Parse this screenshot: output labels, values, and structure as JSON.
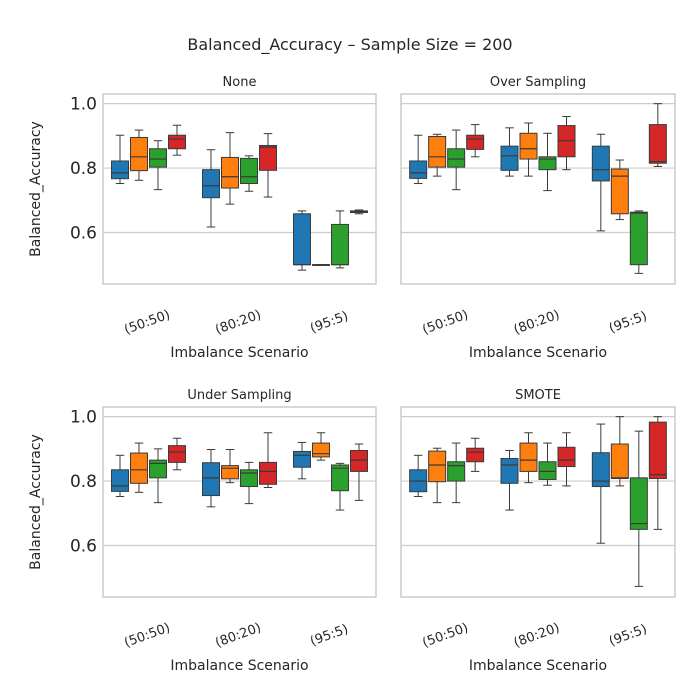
{
  "chart_data": {
    "type": "box",
    "title": "Balanced_Accuracy – Sample Size = 200",
    "xlabel": "Imbalance Scenario",
    "ylabel": "Balanced_Accuracy",
    "ylim": [
      0.44,
      1.03
    ],
    "yticks": [
      0.6,
      0.8,
      1.0
    ],
    "ytick_labels": [
      "0.6",
      "0.8",
      "1.0"
    ],
    "grid": true,
    "categories": [
      "(50:50)",
      "(80:20)",
      "(95:5)"
    ],
    "colors": [
      "#1f77b4",
      "#ff7f0e",
      "#2ca02c",
      "#d62728"
    ],
    "panels": [
      {
        "title": "None",
        "boxes": [
          [
            {
              "min": 0.752,
              "q1": 0.767,
              "median": 0.785,
              "q3": 0.822,
              "max": 0.902
            },
            {
              "min": 0.762,
              "q1": 0.792,
              "median": 0.835,
              "q3": 0.895,
              "max": 0.918
            },
            {
              "min": 0.733,
              "q1": 0.803,
              "median": 0.828,
              "q3": 0.86,
              "max": 0.885
            },
            {
              "min": 0.84,
              "q1": 0.86,
              "median": 0.89,
              "q3": 0.902,
              "max": 0.933
            }
          ],
          [
            {
              "min": 0.617,
              "q1": 0.708,
              "median": 0.745,
              "q3": 0.795,
              "max": 0.857
            },
            {
              "min": 0.688,
              "q1": 0.738,
              "median": 0.773,
              "q3": 0.833,
              "max": 0.91
            },
            {
              "min": 0.728,
              "q1": 0.752,
              "median": 0.773,
              "q3": 0.83,
              "max": 0.838
            },
            {
              "min": 0.71,
              "q1": 0.793,
              "median": 0.865,
              "q3": 0.87,
              "max": 0.907
            }
          ],
          [
            {
              "min": 0.483,
              "q1": 0.5,
              "median": 0.5,
              "q3": 0.658,
              "max": 0.667
            },
            {
              "min": 0.5,
              "q1": 0.5,
              "median": 0.5,
              "q3": 0.5,
              "max": 0.5
            },
            {
              "min": 0.49,
              "q1": 0.5,
              "median": 0.5,
              "q3": 0.625,
              "max": 0.667
            },
            {
              "min": 0.658,
              "q1": 0.662,
              "median": 0.665,
              "q3": 0.667,
              "max": 0.67
            }
          ]
        ]
      },
      {
        "title": "Over Sampling",
        "boxes": [
          [
            {
              "min": 0.752,
              "q1": 0.768,
              "median": 0.785,
              "q3": 0.822,
              "max": 0.902
            },
            {
              "min": 0.775,
              "q1": 0.803,
              "median": 0.835,
              "q3": 0.898,
              "max": 0.905
            },
            {
              "min": 0.733,
              "q1": 0.803,
              "median": 0.828,
              "q3": 0.86,
              "max": 0.918
            },
            {
              "min": 0.835,
              "q1": 0.858,
              "median": 0.89,
              "q3": 0.902,
              "max": 0.935
            }
          ],
          [
            {
              "min": 0.775,
              "q1": 0.793,
              "median": 0.838,
              "q3": 0.868,
              "max": 0.925
            },
            {
              "min": 0.775,
              "q1": 0.828,
              "median": 0.86,
              "q3": 0.908,
              "max": 0.94
            },
            {
              "min": 0.73,
              "q1": 0.795,
              "median": 0.828,
              "q3": 0.835,
              "max": 0.908
            },
            {
              "min": 0.795,
              "q1": 0.835,
              "median": 0.885,
              "q3": 0.932,
              "max": 0.96
            }
          ],
          [
            {
              "min": 0.605,
              "q1": 0.76,
              "median": 0.795,
              "q3": 0.868,
              "max": 0.905
            },
            {
              "min": 0.64,
              "q1": 0.658,
              "median": 0.775,
              "q3": 0.797,
              "max": 0.825
            },
            {
              "min": 0.473,
              "q1": 0.5,
              "median": 0.66,
              "q3": 0.663,
              "max": 0.667
            },
            {
              "min": 0.805,
              "q1": 0.815,
              "median": 0.82,
              "q3": 0.935,
              "max": 1.0
            }
          ]
        ]
      },
      {
        "title": "Under Sampling",
        "boxes": [
          [
            {
              "min": 0.752,
              "q1": 0.768,
              "median": 0.785,
              "q3": 0.835,
              "max": 0.88
            },
            {
              "min": 0.765,
              "q1": 0.793,
              "median": 0.835,
              "q3": 0.887,
              "max": 0.918
            },
            {
              "min": 0.733,
              "q1": 0.81,
              "median": 0.855,
              "q3": 0.865,
              "max": 0.9
            },
            {
              "min": 0.835,
              "q1": 0.858,
              "median": 0.89,
              "q3": 0.91,
              "max": 0.933
            }
          ],
          [
            {
              "min": 0.72,
              "q1": 0.755,
              "median": 0.81,
              "q3": 0.857,
              "max": 0.898
            },
            {
              "min": 0.795,
              "q1": 0.807,
              "median": 0.84,
              "q3": 0.848,
              "max": 0.898
            },
            {
              "min": 0.73,
              "q1": 0.783,
              "median": 0.825,
              "q3": 0.835,
              "max": 0.858
            },
            {
              "min": 0.78,
              "q1": 0.79,
              "median": 0.83,
              "q3": 0.858,
              "max": 0.95
            }
          ],
          [
            {
              "min": 0.807,
              "q1": 0.843,
              "median": 0.88,
              "q3": 0.892,
              "max": 0.92
            },
            {
              "min": 0.865,
              "q1": 0.875,
              "median": 0.885,
              "q3": 0.918,
              "max": 0.95
            },
            {
              "min": 0.71,
              "q1": 0.77,
              "median": 0.84,
              "q3": 0.85,
              "max": 0.855
            },
            {
              "min": 0.74,
              "q1": 0.83,
              "median": 0.865,
              "q3": 0.895,
              "max": 0.915
            }
          ]
        ]
      },
      {
        "title": "SMOTE",
        "boxes": [
          [
            {
              "min": 0.752,
              "q1": 0.767,
              "median": 0.8,
              "q3": 0.835,
              "max": 0.88
            },
            {
              "min": 0.733,
              "q1": 0.798,
              "median": 0.85,
              "q3": 0.893,
              "max": 0.902
            },
            {
              "min": 0.733,
              "q1": 0.8,
              "median": 0.848,
              "q3": 0.86,
              "max": 0.918
            },
            {
              "min": 0.83,
              "q1": 0.86,
              "median": 0.89,
              "q3": 0.902,
              "max": 0.933
            }
          ],
          [
            {
              "min": 0.71,
              "q1": 0.793,
              "median": 0.85,
              "q3": 0.87,
              "max": 0.895
            },
            {
              "min": 0.795,
              "q1": 0.83,
              "median": 0.865,
              "q3": 0.918,
              "max": 0.95
            },
            {
              "min": 0.787,
              "q1": 0.805,
              "median": 0.83,
              "q3": 0.86,
              "max": 0.918
            },
            {
              "min": 0.785,
              "q1": 0.845,
              "median": 0.865,
              "q3": 0.905,
              "max": 0.95
            }
          ],
          [
            {
              "min": 0.607,
              "q1": 0.783,
              "median": 0.8,
              "q3": 0.888,
              "max": 0.977
            },
            {
              "min": 0.785,
              "q1": 0.808,
              "median": 0.81,
              "q3": 0.915,
              "max": 1.0
            },
            {
              "min": 0.473,
              "q1": 0.65,
              "median": 0.668,
              "q3": 0.81,
              "max": 0.955
            },
            {
              "min": 0.65,
              "q1": 0.808,
              "median": 0.82,
              "q3": 0.983,
              "max": 1.0
            }
          ]
        ]
      }
    ]
  }
}
